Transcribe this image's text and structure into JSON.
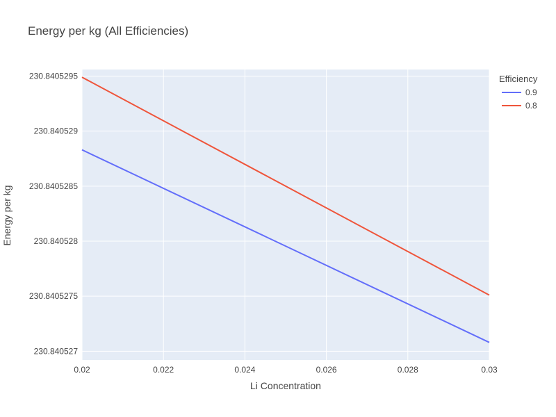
{
  "chart_data": {
    "type": "line",
    "title": "Energy per kg (All Efficiencies)",
    "xlabel": "Li Concentration",
    "ylabel": "Energy per kg",
    "xlim": [
      0.02,
      0.03
    ],
    "ylim": [
      230.84052692,
      230.84052956
    ],
    "x_ticks": [
      0.02,
      0.022,
      0.024,
      0.026,
      0.028,
      0.03
    ],
    "x_tick_labels": [
      "0.02",
      "0.022",
      "0.024",
      "0.026",
      "0.028",
      "0.03"
    ],
    "y_ticks": [
      230.840527,
      230.8405275,
      230.840528,
      230.8405285,
      230.840529,
      230.8405295
    ],
    "y_tick_labels": [
      "230.840527",
      "230.8405275",
      "230.840528",
      "230.8405285",
      "230.840529",
      "230.8405295"
    ],
    "grid": true,
    "legend_title": "Efficiency",
    "legend_position": "top-right",
    "series": [
      {
        "name": "0.9",
        "color": "#636efa",
        "x": [
          0.02,
          0.03
        ],
        "y": [
          230.84052883,
          230.84052708
        ]
      },
      {
        "name": "0.8",
        "color": "#ef553b",
        "x": [
          0.02,
          0.03
        ],
        "y": [
          230.84052949,
          230.84052751
        ]
      }
    ],
    "plot_background": "#e5ecf6"
  }
}
